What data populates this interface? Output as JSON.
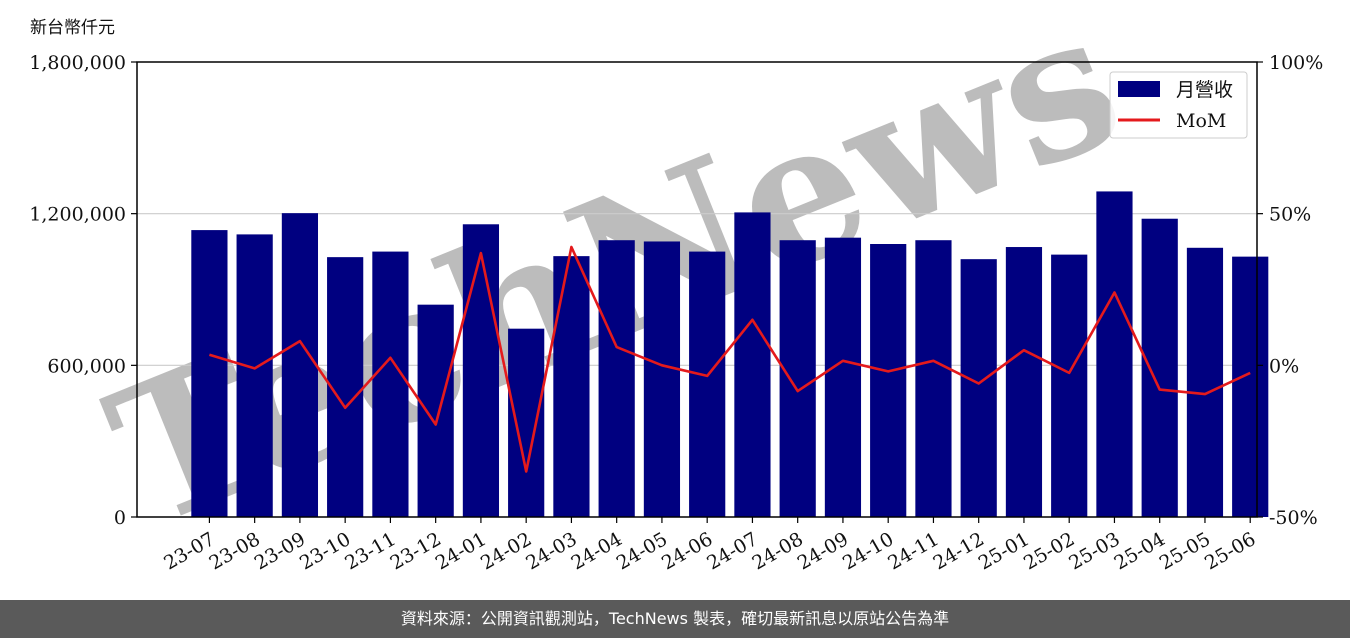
{
  "chart_data": {
    "type": "bar",
    "unit_label": "新台幣仟元",
    "categories": [
      "23-07",
      "23-08",
      "23-09",
      "23-10",
      "23-11",
      "23-12",
      "24-01",
      "24-02",
      "24-03",
      "24-04",
      "24-05",
      "24-06",
      "24-07",
      "24-08",
      "24-09",
      "24-10",
      "24-11",
      "24-12",
      "25-01",
      "25-02",
      "25-03",
      "25-04",
      "25-05",
      "25-06"
    ],
    "series": [
      {
        "name": "月營收",
        "type": "bar",
        "axis": "left",
        "color": "#000080",
        "values": [
          1135000,
          1118000,
          1202000,
          1028000,
          1050000,
          840000,
          1158000,
          745000,
          1032000,
          1095000,
          1090000,
          1050000,
          1205000,
          1095000,
          1105000,
          1080000,
          1095000,
          1020000,
          1068000,
          1038000,
          1288000,
          1180000,
          1065000,
          1030000
        ]
      },
      {
        "name": "MoM",
        "type": "line",
        "axis": "right",
        "color": "#e41a1c",
        "values": [
          3.5,
          -1.0,
          8.0,
          -14.0,
          2.5,
          -19.5,
          37.0,
          -35.0,
          39.0,
          6.0,
          0.0,
          -3.5,
          15.0,
          -8.5,
          1.5,
          -2.0,
          1.5,
          -6.0,
          5.0,
          -2.5,
          24.0,
          -8.0,
          -9.5,
          -2.5
        ]
      }
    ],
    "ylim_left": [
      0,
      1800000
    ],
    "yticks_left": [
      "0",
      "600,000",
      "1,200,000",
      "1,800,000"
    ],
    "ylim_right": [
      -50,
      100
    ],
    "yticks_right": [
      "-50%",
      "0%",
      "50%",
      "100%"
    ],
    "grid": "horizontal",
    "legend_position": "top-right",
    "watermark": "TechNews"
  },
  "footer": {
    "text": "資料來源：公開資訊觀測站，TechNews 製表，確切最新訊息以原站公告為準"
  }
}
